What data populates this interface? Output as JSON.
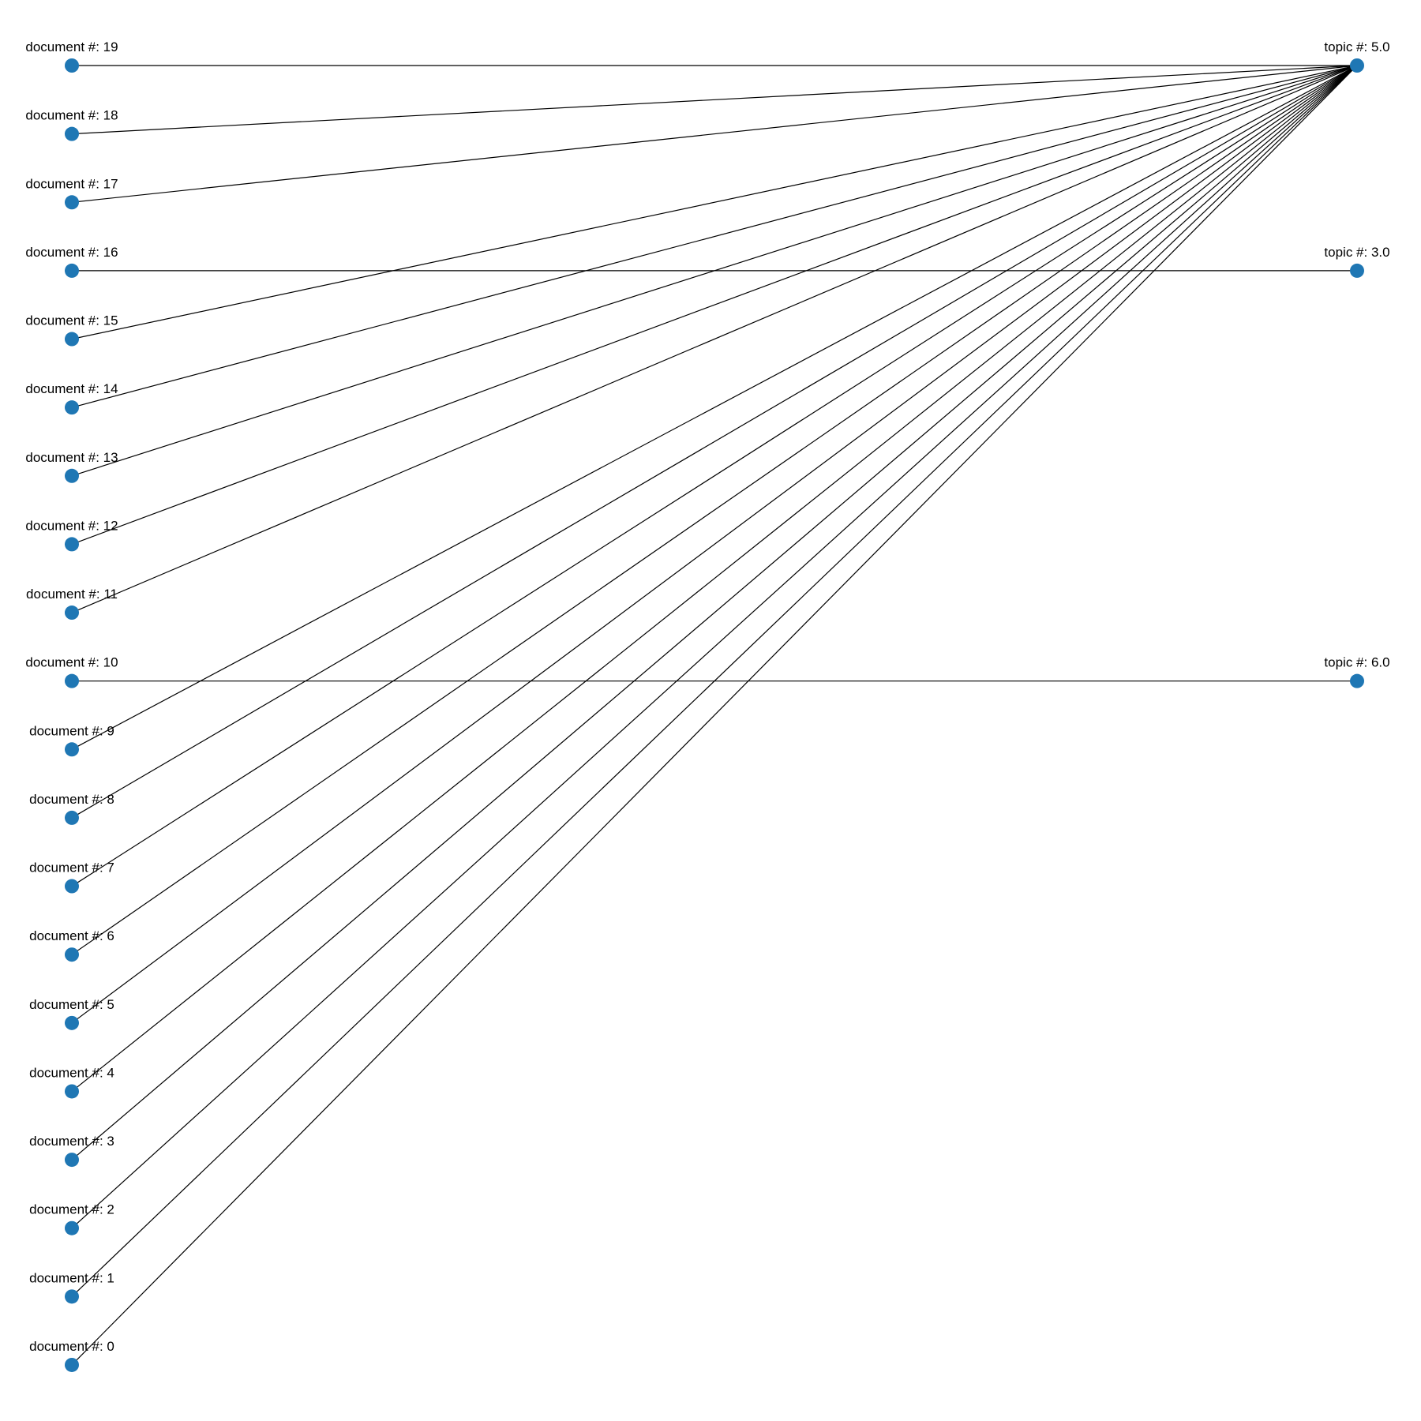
{
  "graph": {
    "node_color": "#1f77b4",
    "edge_color": "#000000",
    "documents": [
      {
        "id": "d19",
        "label": "document #: 19"
      },
      {
        "id": "d18",
        "label": "document #: 18"
      },
      {
        "id": "d17",
        "label": "document #: 17"
      },
      {
        "id": "d16",
        "label": "document #: 16"
      },
      {
        "id": "d15",
        "label": "document #: 15"
      },
      {
        "id": "d14",
        "label": "document #: 14"
      },
      {
        "id": "d13",
        "label": "document #: 13"
      },
      {
        "id": "d12",
        "label": "document #: 12"
      },
      {
        "id": "d11",
        "label": "document #: 11"
      },
      {
        "id": "d10",
        "label": "document #: 10"
      },
      {
        "id": "d9",
        "label": "document #: 9"
      },
      {
        "id": "d8",
        "label": "document #: 8"
      },
      {
        "id": "d7",
        "label": "document #: 7"
      },
      {
        "id": "d6",
        "label": "document #: 6"
      },
      {
        "id": "d5",
        "label": "document #: 5"
      },
      {
        "id": "d4",
        "label": "document #: 4"
      },
      {
        "id": "d3",
        "label": "document #: 3"
      },
      {
        "id": "d2",
        "label": "document #: 2"
      },
      {
        "id": "d1",
        "label": "document #: 1"
      },
      {
        "id": "d0",
        "label": "document #: 0"
      }
    ],
    "topics": [
      {
        "id": "t5",
        "label": "topic #: 5.0"
      },
      {
        "id": "t3",
        "label": "topic #: 3.0"
      },
      {
        "id": "t6",
        "label": "topic #: 6.0"
      }
    ],
    "edges": [
      {
        "from": "d19",
        "to": "t5"
      },
      {
        "from": "d18",
        "to": "t5"
      },
      {
        "from": "d17",
        "to": "t5"
      },
      {
        "from": "d16",
        "to": "t3"
      },
      {
        "from": "d15",
        "to": "t5"
      },
      {
        "from": "d14",
        "to": "t5"
      },
      {
        "from": "d13",
        "to": "t5"
      },
      {
        "from": "d12",
        "to": "t5"
      },
      {
        "from": "d11",
        "to": "t5"
      },
      {
        "from": "d10",
        "to": "t6"
      },
      {
        "from": "d9",
        "to": "t5"
      },
      {
        "from": "d8",
        "to": "t5"
      },
      {
        "from": "d7",
        "to": "t5"
      },
      {
        "from": "d6",
        "to": "t5"
      },
      {
        "from": "d5",
        "to": "t5"
      },
      {
        "from": "d4",
        "to": "t5"
      },
      {
        "from": "d3",
        "to": "t5"
      },
      {
        "from": "d2",
        "to": "t5"
      },
      {
        "from": "d1",
        "to": "t5"
      },
      {
        "from": "d0",
        "to": "t5"
      }
    ]
  }
}
